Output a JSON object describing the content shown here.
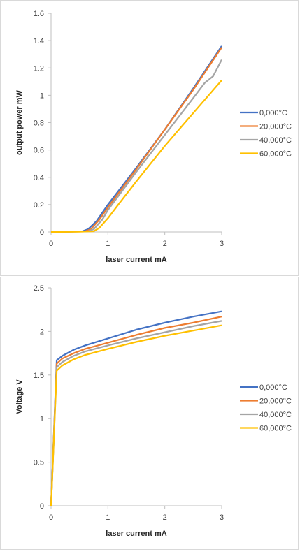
{
  "chart_data": [
    {
      "type": "line",
      "title": "",
      "xlabel": "laser current mA",
      "ylabel": "output power mW",
      "xlim": [
        0,
        3
      ],
      "ylim": [
        0,
        1.6
      ],
      "xticks": [
        "0",
        "1",
        "2",
        "3"
      ],
      "yticks": [
        "0",
        "0.2",
        "0.4",
        "0.6",
        "0.8",
        "1",
        "1.2",
        "1.4",
        "1.6"
      ],
      "grid": false,
      "legend": "right",
      "series": [
        {
          "name": "0,000°C",
          "color": "#4472C4",
          "x": [
            0,
            0.3,
            0.55,
            0.65,
            0.8,
            1.0,
            1.5,
            2.0,
            2.5,
            3.0
          ],
          "y": [
            0,
            0.002,
            0.005,
            0.02,
            0.08,
            0.2,
            0.47,
            0.75,
            1.05,
            1.36
          ]
        },
        {
          "name": "20,000°C",
          "color": "#ED7D31",
          "x": [
            0,
            0.3,
            0.6,
            0.7,
            0.85,
            1.0,
            1.5,
            2.0,
            2.5,
            3.0
          ],
          "y": [
            0,
            0.002,
            0.005,
            0.02,
            0.09,
            0.18,
            0.46,
            0.75,
            1.04,
            1.35
          ]
        },
        {
          "name": "40,000°C",
          "color": "#A5A5A5",
          "x": [
            0,
            0.4,
            0.65,
            0.75,
            0.9,
            1.0,
            1.5,
            2.0,
            2.5,
            2.7,
            2.85,
            3.0
          ],
          "y": [
            0,
            0.002,
            0.005,
            0.02,
            0.09,
            0.16,
            0.44,
            0.71,
            0.98,
            1.09,
            1.14,
            1.26
          ]
        },
        {
          "name": "60,000°C",
          "color": "#FFC000",
          "x": [
            0,
            0.5,
            0.75,
            0.85,
            1.0,
            1.2,
            1.5,
            2.0,
            2.5,
            3.0
          ],
          "y": [
            0,
            0.002,
            0.005,
            0.03,
            0.1,
            0.21,
            0.37,
            0.63,
            0.87,
            1.11
          ]
        }
      ]
    },
    {
      "type": "line",
      "title": "",
      "xlabel": "laser current mA",
      "ylabel": "Voltage V",
      "xlim": [
        0,
        3
      ],
      "ylim": [
        0,
        2.5
      ],
      "xticks": [
        "0",
        "1",
        "2",
        "3"
      ],
      "yticks": [
        "0",
        "0.5",
        "1",
        "1.5",
        "2",
        "2.5"
      ],
      "grid": false,
      "legend": "right",
      "series": [
        {
          "name": "0,000°C",
          "color": "#4472C4",
          "x": [
            0,
            0.1,
            0.2,
            0.4,
            0.6,
            1.0,
            1.5,
            2.0,
            2.5,
            3.0
          ],
          "y": [
            0,
            1.67,
            1.72,
            1.79,
            1.84,
            1.92,
            2.02,
            2.1,
            2.17,
            2.23
          ]
        },
        {
          "name": "20,000°C",
          "color": "#ED7D31",
          "x": [
            0,
            0.1,
            0.2,
            0.4,
            0.6,
            1.0,
            1.5,
            2.0,
            2.5,
            3.0
          ],
          "y": [
            0,
            1.63,
            1.69,
            1.75,
            1.8,
            1.87,
            1.96,
            2.04,
            2.1,
            2.17
          ]
        },
        {
          "name": "40,000°C",
          "color": "#A5A5A5",
          "x": [
            0,
            0.1,
            0.2,
            0.4,
            0.6,
            1.0,
            1.5,
            2.0,
            2.5,
            3.0
          ],
          "y": [
            0,
            1.59,
            1.65,
            1.72,
            1.77,
            1.84,
            1.92,
            1.99,
            2.06,
            2.12
          ]
        },
        {
          "name": "60,000°C",
          "color": "#FFC000",
          "x": [
            0,
            0.1,
            0.2,
            0.4,
            0.6,
            1.0,
            1.5,
            2.0,
            2.5,
            3.0
          ],
          "y": [
            0,
            1.55,
            1.61,
            1.68,
            1.73,
            1.8,
            1.88,
            1.95,
            2.01,
            2.07
          ]
        }
      ]
    }
  ]
}
